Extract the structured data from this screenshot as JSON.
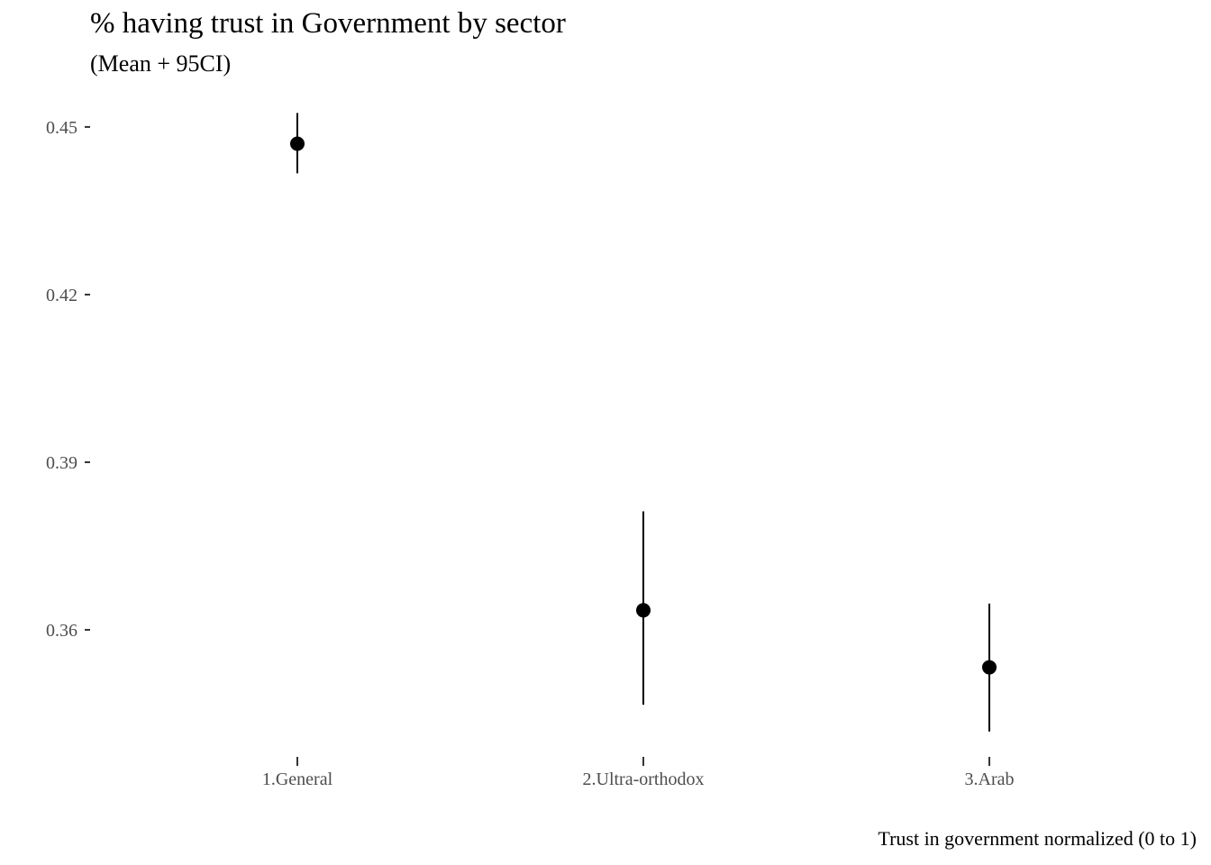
{
  "chart_data": {
    "type": "scatter",
    "title": "% having trust in Government by sector",
    "subtitle": "(Mean + 95CI)",
    "caption": "Trust in government normalized (0 to 1)",
    "xlabel": "",
    "ylabel": "",
    "categories": [
      "1.General",
      "2.Ultra-orthodox",
      "3.Arab"
    ],
    "series": [
      {
        "mean": [
          0.447,
          0.3635,
          0.3533
        ],
        "ci_low": [
          0.4417,
          0.3466,
          0.3418
        ],
        "ci_high": [
          0.4525,
          0.3812,
          0.3647
        ]
      }
    ],
    "y_ticks": [
      0.36,
      0.39,
      0.42,
      0.45
    ],
    "y_tick_labels": [
      "0.36",
      "0.39",
      "0.42",
      "0.45"
    ],
    "ylim": [
      0.3392,
      0.4545
    ],
    "grid": false,
    "legend": "none",
    "colors": {
      "point": "#000000",
      "errorbar": "#000000",
      "tick": "#333333",
      "tick_label": "#4d4d4d"
    }
  }
}
